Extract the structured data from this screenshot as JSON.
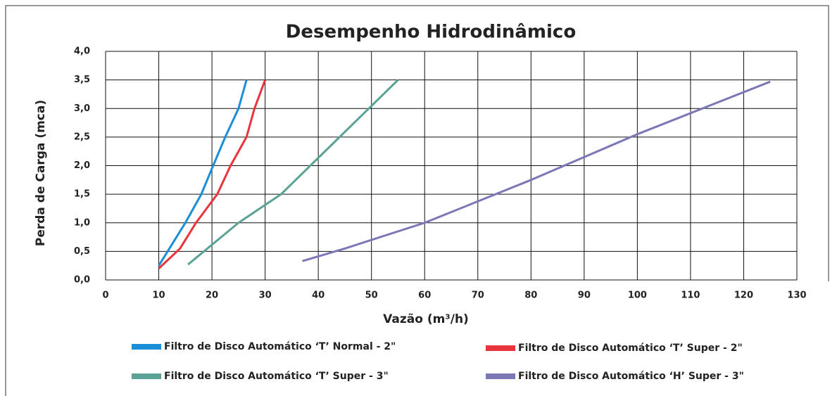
{
  "chart_data": {
    "type": "line",
    "title": "Desempenho Hidrodinâmico",
    "xlabel": "Vazão (m³/h)",
    "ylabel": "Perda de Carga  (mca)",
    "xlim": [
      0,
      130
    ],
    "ylim": [
      0,
      4
    ],
    "xticks": [
      0,
      10,
      20,
      30,
      40,
      50,
      60,
      70,
      80,
      90,
      100,
      110,
      120,
      130
    ],
    "yticks": [
      {
        "value": 0,
        "label": "0,0"
      },
      {
        "value": 0.5,
        "label": "0,5"
      },
      {
        "value": 1,
        "label": "1,0"
      },
      {
        "value": 1.5,
        "label": "1,5"
      },
      {
        "value": 2,
        "label": "2,0"
      },
      {
        "value": 2.5,
        "label": "2,5"
      },
      {
        "value": 3,
        "label": "3,0"
      },
      {
        "value": 3.5,
        "label": "3,5"
      },
      {
        "value": 4,
        "label": "4,0"
      }
    ],
    "grid": true,
    "legend": "bottom",
    "series": [
      {
        "name": "Filtro de Disco Automático ‘T’ Normal - 2\"",
        "color": "#1a8fd8",
        "x": [
          10,
          15,
          18,
          20,
          22.5,
          25,
          26.5
        ],
        "values": [
          0.25,
          1.0,
          1.5,
          1.95,
          2.5,
          3.0,
          3.5
        ]
      },
      {
        "name": "Filtro de Disco Automático ‘T’ Super - 2\"",
        "color": "#e8343a",
        "x": [
          10,
          14,
          17,
          21,
          23.5,
          26.5,
          28,
          30
        ],
        "values": [
          0.2,
          0.55,
          1.0,
          1.5,
          2.0,
          2.5,
          3.0,
          3.5
        ]
      },
      {
        "name": "Filtro de Disco Automático ‘T’ Super - 3\"",
        "color": "#5aa394",
        "x": [
          15.5,
          25,
          33,
          44,
          55
        ],
        "values": [
          0.27,
          1.0,
          1.5,
          2.5,
          3.5
        ]
      },
      {
        "name": "Filtro de Disco Automático ‘H’ Super - 3\"",
        "color": "#7b78b8",
        "x": [
          37,
          45,
          60,
          80,
          100,
          125
        ],
        "values": [
          0.33,
          0.55,
          1.0,
          1.75,
          2.55,
          3.47
        ]
      }
    ]
  }
}
